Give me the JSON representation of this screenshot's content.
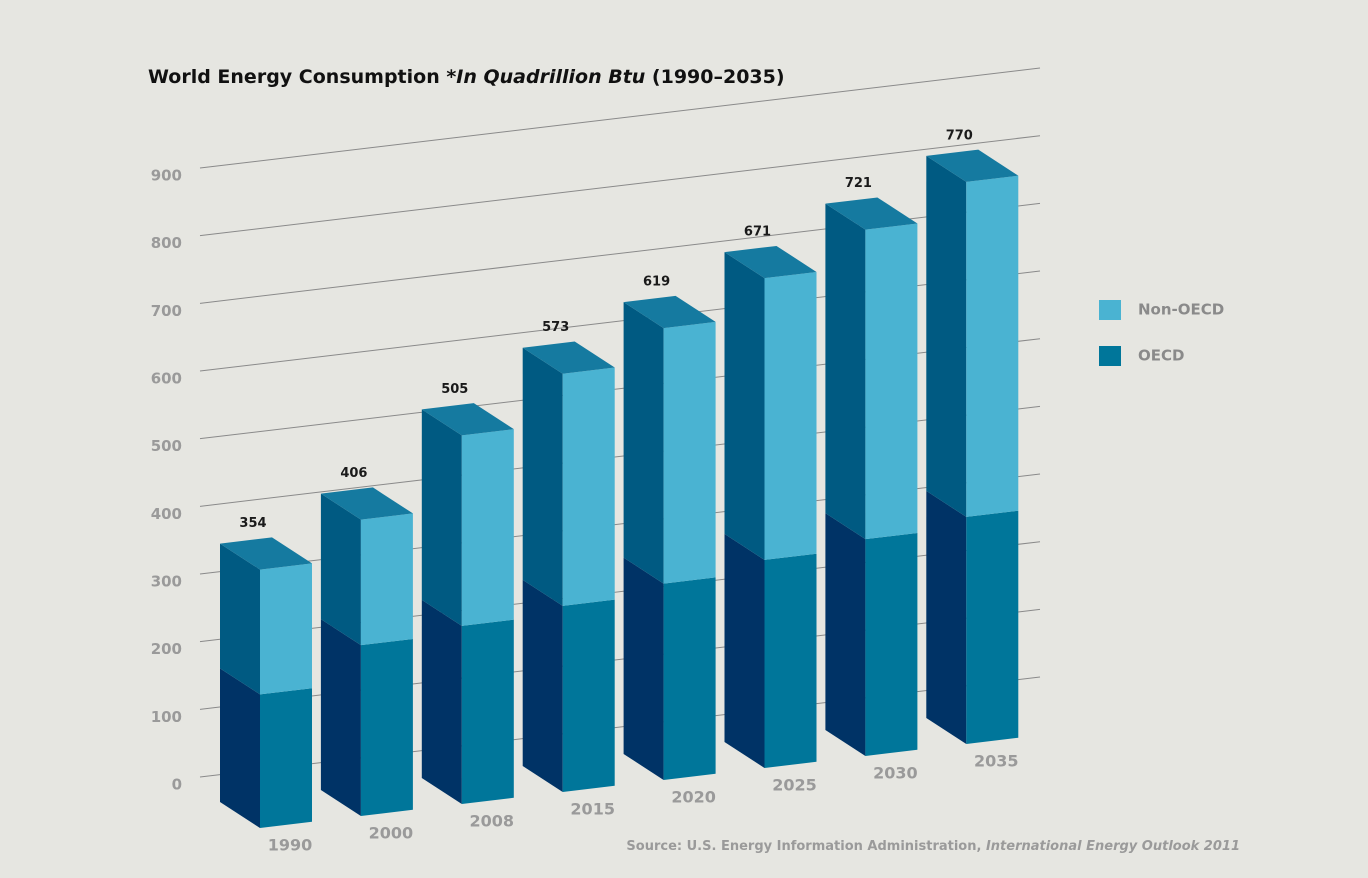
{
  "chart_data": {
    "type": "bar3d_stacked",
    "title": {
      "lead": "World Energy Consumption *",
      "italic": "In Quadrillion Btu",
      "tail": " (1990–2035)"
    },
    "categories": [
      "1990",
      "2000",
      "2008",
      "2015",
      "2020",
      "2025",
      "2030",
      "2035"
    ],
    "series": [
      {
        "name": "OECD",
        "color": "#00769a",
        "side_color": "#003366",
        "values": [
          183,
          234,
          244,
          255,
          269,
          285,
          297,
          311
        ]
      },
      {
        "name": "Non-OECD",
        "color": "#4ab3d2",
        "side_color": "#005a82",
        "values": [
          171,
          172,
          261,
          318,
          350,
          386,
          424,
          459
        ]
      }
    ],
    "totals": [
      354,
      406,
      505,
      573,
      619,
      671,
      721,
      770
    ],
    "top_color": "#157aa0",
    "ylim": [
      0,
      900
    ],
    "yticks": [
      0,
      100,
      200,
      300,
      400,
      500,
      600,
      700,
      800,
      900
    ],
    "grid": true,
    "source": {
      "lead": "Source: U.S. Energy Information Administration, ",
      "italic": "International Energy Outlook 2011"
    }
  }
}
